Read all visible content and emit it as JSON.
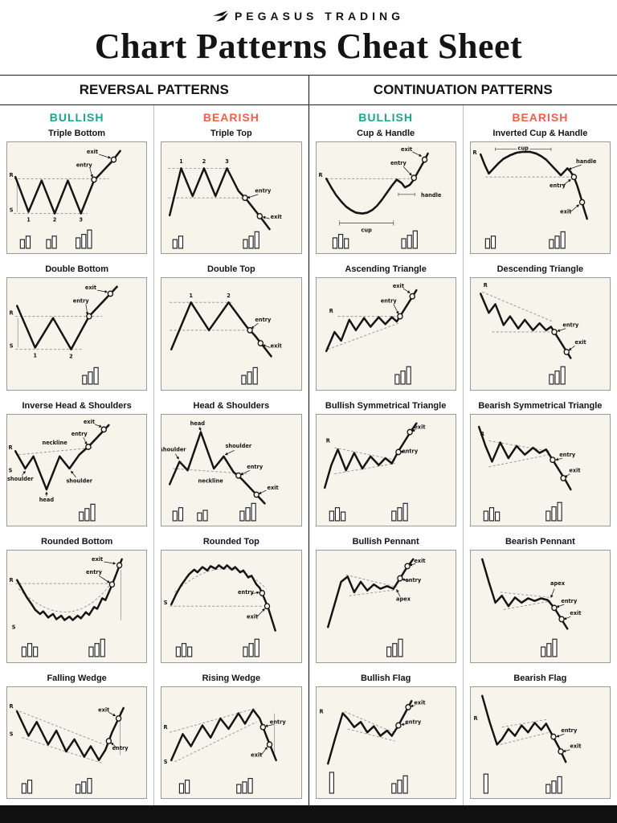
{
  "header": {
    "brand": "PEGASUS TRADING",
    "title": "Chart Patterns Cheat Sheet"
  },
  "colors": {
    "bullish": "#1fa390",
    "bearish": "#ee5f4c",
    "chart_bg": "#f7f4eb",
    "ink": "#141414",
    "footer": "#111111"
  },
  "chart_labels": {
    "entry": "entry",
    "exit": "exit",
    "R": "R",
    "S": "S",
    "neckline": "neckline",
    "head": "head",
    "shoulder": "shoulder",
    "cup": "cup",
    "handle": "handle",
    "apex": "apex",
    "n1": "1",
    "n2": "2",
    "n3": "3"
  },
  "sections": [
    {
      "title": "REVERSAL PATTERNS",
      "columns": [
        {
          "label": "BULLISH",
          "patterns": [
            {
              "key": "triple-bottom",
              "name": "Triple Bottom",
              "annotations": [
                "R",
                "S",
                "entry",
                "exit",
                "1",
                "2",
                "3"
              ]
            },
            {
              "key": "double-bottom",
              "name": "Double Bottom",
              "annotations": [
                "R",
                "S",
                "entry",
                "exit",
                "1",
                "2"
              ]
            },
            {
              "key": "inverse-head-shoulders",
              "name": "Inverse Head & Shoulders",
              "annotations": [
                "R",
                "S",
                "shoulder",
                "head",
                "shoulder",
                "neckline",
                "entry",
                "exit"
              ]
            },
            {
              "key": "rounded-bottom",
              "name": "Rounded Bottom",
              "annotations": [
                "R",
                "S",
                "entry",
                "exit"
              ]
            },
            {
              "key": "falling-wedge",
              "name": "Falling Wedge",
              "annotations": [
                "R",
                "S",
                "entry",
                "exit"
              ]
            }
          ]
        },
        {
          "label": "BEARISH",
          "patterns": [
            {
              "key": "triple-top",
              "name": "Triple Top",
              "annotations": [
                "1",
                "2",
                "3",
                "entry",
                "exit"
              ]
            },
            {
              "key": "double-top",
              "name": "Double Top",
              "annotations": [
                "1",
                "2",
                "entry",
                "exit"
              ]
            },
            {
              "key": "head-shoulders",
              "name": "Head & Shoulders",
              "annotations": [
                "shoulder",
                "head",
                "shoulder",
                "neckline",
                "entry",
                "exit"
              ]
            },
            {
              "key": "rounded-top",
              "name": "Rounded Top",
              "annotations": [
                "S",
                "entry",
                "exit"
              ]
            },
            {
              "key": "rising-wedge",
              "name": "Rising Wedge",
              "annotations": [
                "R",
                "S",
                "entry",
                "exit"
              ]
            }
          ]
        }
      ]
    },
    {
      "title": "CONTINUATION PATTERNS",
      "columns": [
        {
          "label": "BULLISH",
          "patterns": [
            {
              "key": "cup-handle",
              "name": "Cup & Handle",
              "annotations": [
                "R",
                "cup",
                "handle",
                "entry",
                "exit"
              ]
            },
            {
              "key": "ascending-triangle",
              "name": "Ascending Triangle",
              "annotations": [
                "R",
                "entry",
                "exit"
              ]
            },
            {
              "key": "bullish-symmetrical-triangle",
              "name": "Bullish Symmetrical Triangle",
              "annotations": [
                "R",
                "entry",
                "exit"
              ]
            },
            {
              "key": "bullish-pennant",
              "name": "Bullish Pennant",
              "annotations": [
                "apex",
                "entry",
                "exit"
              ]
            },
            {
              "key": "bullish-flag",
              "name": "Bullish Flag",
              "annotations": [
                "R",
                "entry",
                "exit"
              ]
            }
          ]
        },
        {
          "label": "BEARISH",
          "patterns": [
            {
              "key": "inverted-cup-handle",
              "name": "Inverted Cup & Handle",
              "annotations": [
                "R",
                "cup",
                "handle",
                "entry",
                "exit"
              ]
            },
            {
              "key": "descending-triangle",
              "name": "Descending Triangle",
              "annotations": [
                "R",
                "entry",
                "exit"
              ]
            },
            {
              "key": "bearish-symmetrical-triangle",
              "name": "Bearish Symmetrical Triangle",
              "annotations": [
                "R",
                "entry",
                "exit"
              ]
            },
            {
              "key": "bearish-pennant",
              "name": "Bearish Pennant",
              "annotations": [
                "apex",
                "entry",
                "exit"
              ]
            },
            {
              "key": "bearish-flag",
              "name": "Bearish Flag",
              "annotations": [
                "R",
                "entry",
                "exit"
              ]
            }
          ]
        }
      ]
    }
  ]
}
